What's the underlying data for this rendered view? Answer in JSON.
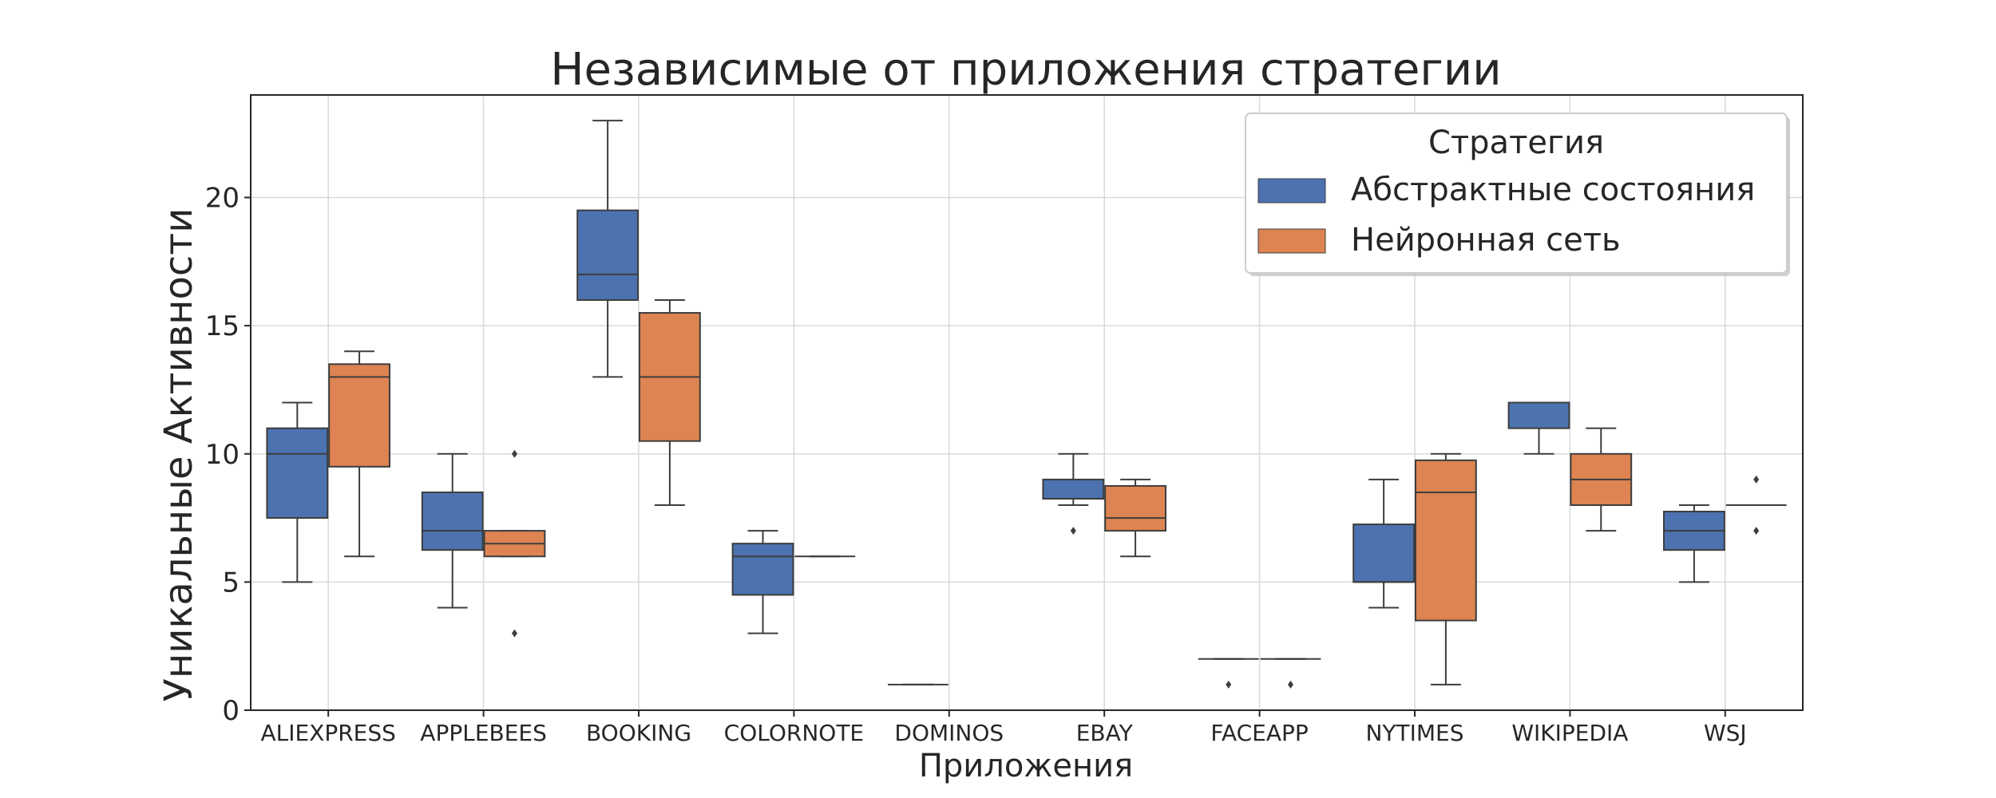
{
  "chart_data": {
    "type": "box",
    "title": "Независимые от приложения стратегии",
    "xlabel": "Приложения",
    "ylabel": "Уникальные Активности",
    "ylim": [
      0,
      24
    ],
    "yticks": [
      0,
      5,
      10,
      15,
      20
    ],
    "grid": true,
    "categories": [
      "ALIEXPRESS",
      "APPLEBEES",
      "BOOKING",
      "COLORNOTE",
      "DOMINOS",
      "EBAY",
      "FACEAPP",
      "NYTIMES",
      "WIKIPEDIA",
      "WSJ"
    ],
    "legend": {
      "title": "Стратегия",
      "placement": "top-right"
    },
    "series": [
      {
        "name": "Абстрактные состояния",
        "color": "#4c72b0",
        "boxes": [
          {
            "whislo": 5,
            "q1": 7.5,
            "med": 10,
            "q3": 11,
            "whishi": 12,
            "fliers": []
          },
          {
            "whislo": 4,
            "q1": 6.25,
            "med": 7,
            "q3": 8.5,
            "whishi": 10,
            "fliers": []
          },
          {
            "whislo": 13,
            "q1": 16,
            "med": 17,
            "q3": 19.5,
            "whishi": 23,
            "fliers": []
          },
          {
            "whislo": 3,
            "q1": 4.5,
            "med": 6,
            "q3": 6.5,
            "whishi": 7,
            "fliers": []
          },
          {
            "whislo": 1,
            "q1": 1,
            "med": 1,
            "q3": 1,
            "whishi": 1,
            "fliers": []
          },
          {
            "whislo": 8,
            "q1": 8.25,
            "med": 8.25,
            "q3": 9,
            "whishi": 10,
            "fliers": [
              7
            ]
          },
          {
            "whislo": 2,
            "q1": 2,
            "med": 2,
            "q3": 2,
            "whishi": 2,
            "fliers": [
              1
            ]
          },
          {
            "whislo": 4,
            "q1": 5,
            "med": 5,
            "q3": 7.25,
            "whishi": 9,
            "fliers": []
          },
          {
            "whislo": 10,
            "q1": 11,
            "med": 12,
            "q3": 12,
            "whishi": 12,
            "fliers": []
          },
          {
            "whislo": 5,
            "q1": 6.25,
            "med": 7,
            "q3": 7.75,
            "whishi": 8,
            "fliers": []
          }
        ]
      },
      {
        "name": "Нейронная сеть",
        "color": "#dd8452",
        "boxes": [
          {
            "whislo": 6,
            "q1": 9.5,
            "med": 13,
            "q3": 13.5,
            "whishi": 14,
            "fliers": []
          },
          {
            "whislo": 6,
            "q1": 6,
            "med": 6.5,
            "q3": 7,
            "whishi": 7,
            "fliers": [
              3,
              10
            ]
          },
          {
            "whislo": 8,
            "q1": 10.5,
            "med": 13,
            "q3": 15.5,
            "whishi": 16,
            "fliers": []
          },
          {
            "whislo": 6,
            "q1": 6,
            "med": 6,
            "q3": 6,
            "whishi": 6,
            "fliers": []
          },
          null,
          {
            "whislo": 6,
            "q1": 7,
            "med": 7.5,
            "q3": 8.75,
            "whishi": 9,
            "fliers": []
          },
          {
            "whislo": 2,
            "q1": 2,
            "med": 2,
            "q3": 2,
            "whishi": 2,
            "fliers": [
              1
            ]
          },
          {
            "whislo": 1,
            "q1": 3.5,
            "med": 8.5,
            "q3": 9.75,
            "whishi": 10,
            "fliers": []
          },
          {
            "whislo": 7,
            "q1": 8,
            "med": 9,
            "q3": 10,
            "whishi": 11,
            "fliers": []
          },
          {
            "whislo": 8,
            "q1": 8,
            "med": 8,
            "q3": 8,
            "whishi": 8,
            "fliers": [
              7,
              9
            ]
          }
        ]
      }
    ]
  }
}
